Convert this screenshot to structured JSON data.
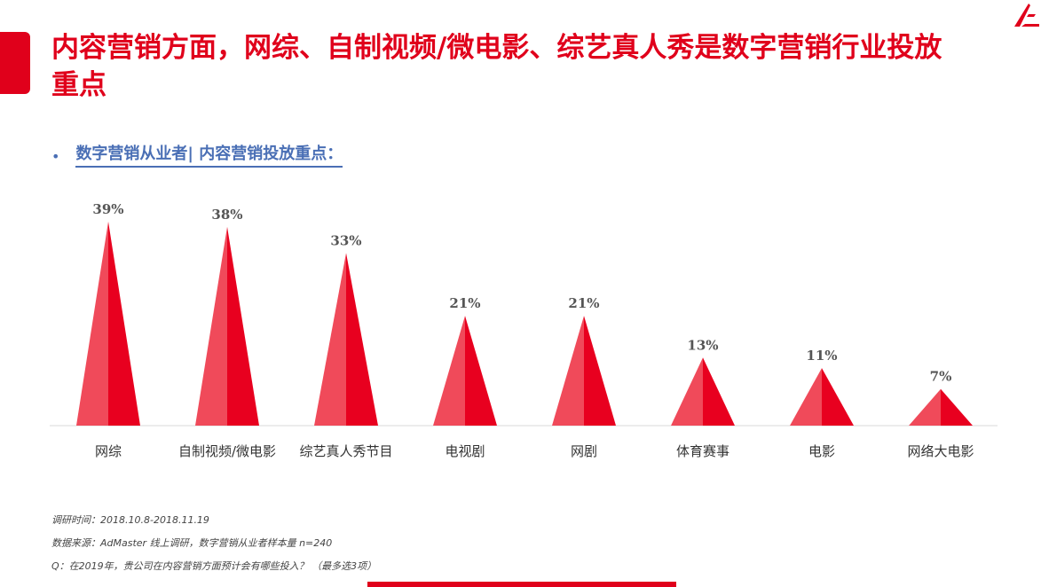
{
  "header": {
    "title": "内容营销方面，网综、自制视频/微电影、综艺真人秀是数字营销行业投放重点"
  },
  "subtitle": {
    "bullet": "•",
    "text": "数字营销从业者| 内容营销投放重点："
  },
  "colors": {
    "accent": "#e0001b",
    "cone_light": "#f04a5a",
    "cone_dark": "#e8001f",
    "subtitle": "#4a6fb5"
  },
  "chart_data": {
    "type": "bar",
    "categories": [
      "网综",
      "自制视频/微电影",
      "综艺真人秀节目",
      "电视剧",
      "网剧",
      "体育赛事",
      "电影",
      "网络大电影"
    ],
    "values": [
      39,
      38,
      33,
      21,
      21,
      13,
      11,
      7
    ],
    "labels": [
      "39%",
      "38%",
      "33%",
      "21%",
      "21%",
      "13%",
      "11%",
      "7%"
    ],
    "mark_shape": "cone",
    "ylim": [
      0,
      40
    ],
    "grid": false,
    "legend": "none"
  },
  "footnotes": {
    "time": "调研时间：2018.10.8-2018.11.19",
    "source": "数据来源：AdMaster  线上调研，数字营销从业者样本量 n=240",
    "question": "Q：在2019年，贵公司在内容营销方面预计会有哪些投入？ （最多选3项）"
  }
}
